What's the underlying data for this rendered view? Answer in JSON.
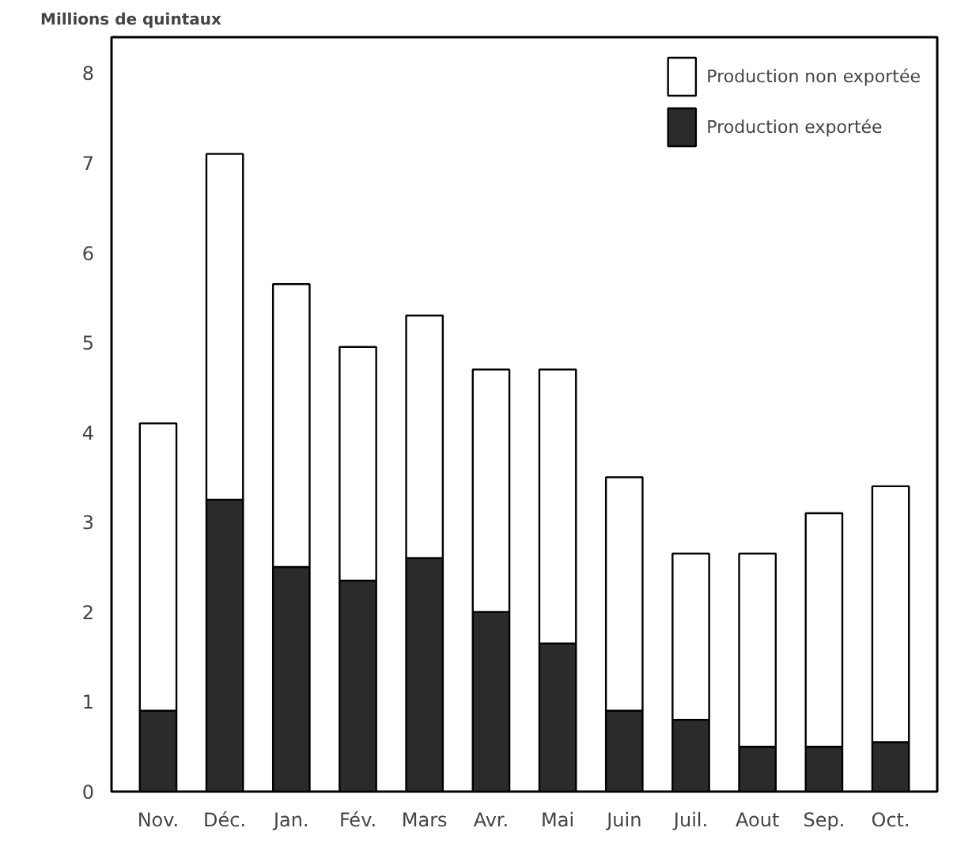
{
  "chart_data": {
    "type": "bar",
    "stacked": true,
    "ylabel": "Millions de quintaux",
    "categories": [
      "Nov.",
      "Déc.",
      "Jan.",
      "Fév.",
      "Mars",
      "Avr.",
      "Mai",
      "Juin",
      "Juil.",
      "Aout",
      "Sep.",
      "Oct."
    ],
    "series": [
      {
        "name": "Production exportée",
        "color": "#2b2b2b",
        "values": [
          0.9,
          3.25,
          2.5,
          2.35,
          2.6,
          2.0,
          1.65,
          0.9,
          0.8,
          0.5,
          0.5,
          0.55
        ]
      },
      {
        "name": "Production non exportée",
        "color": "#ffffff",
        "values": [
          3.2,
          3.85,
          3.15,
          2.6,
          2.7,
          2.7,
          3.05,
          2.6,
          1.85,
          2.15,
          2.6,
          2.85
        ]
      }
    ],
    "ylim": [
      0,
      8.4
    ],
    "yticks": [
      0,
      1,
      2,
      3,
      4,
      5,
      6,
      7,
      8
    ],
    "grid": false,
    "legend": "top right"
  }
}
